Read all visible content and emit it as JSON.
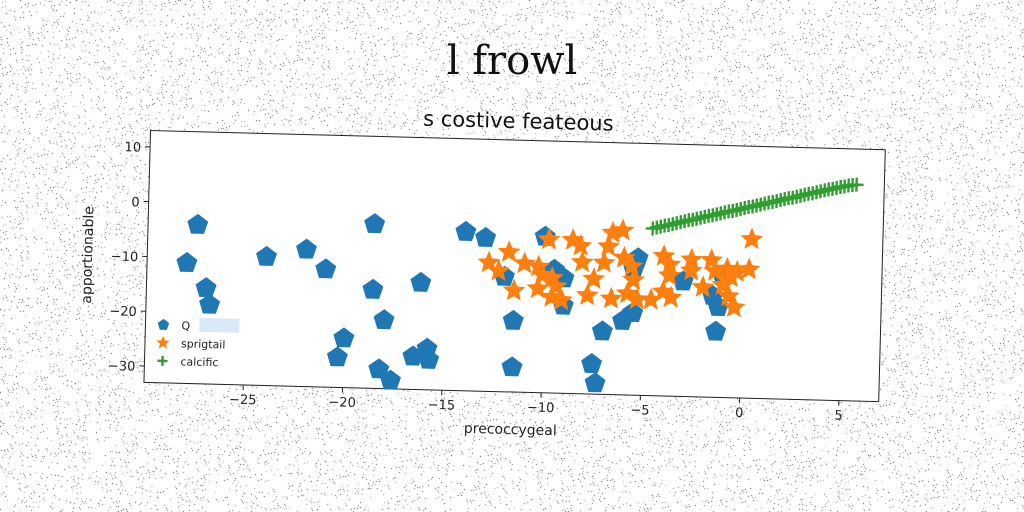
{
  "suptitle": "l frowl",
  "chart_data": {
    "type": "scatter",
    "title": "s costive feateous",
    "xlabel": "precoccygeal",
    "ylabel": "apportionable",
    "xlim": [
      -30,
      7
    ],
    "ylim": [
      -33,
      13
    ],
    "xticks": [
      -25,
      -20,
      -15,
      -10,
      -5,
      0,
      5
    ],
    "yticks": [
      10,
      0,
      -10,
      -20,
      -30
    ],
    "legend_position": "lower-left",
    "series": [
      {
        "name": "Q",
        "marker": "pentagon",
        "color": "#1f77b4",
        "points": [
          [
            -27.5,
            -4
          ],
          [
            -28,
            -11
          ],
          [
            -27,
            -15.5
          ],
          [
            -26.8,
            -18.5
          ],
          [
            -24,
            -9.5
          ],
          [
            -22,
            -8
          ],
          [
            -21,
            -11.5
          ],
          [
            -20,
            -24
          ],
          [
            -20.3,
            -27.5
          ],
          [
            -18.6,
            -3
          ],
          [
            -18.6,
            -15
          ],
          [
            -18,
            -20.5
          ],
          [
            -18.2,
            -29.5
          ],
          [
            -17.6,
            -31.5
          ],
          [
            -16.2,
            -13.5
          ],
          [
            -16.5,
            -27
          ],
          [
            -15.7,
            -27.5
          ],
          [
            -15.8,
            -25.5
          ],
          [
            -14,
            -4
          ],
          [
            -13,
            -5
          ],
          [
            -12,
            -12
          ],
          [
            -11.5,
            -20
          ],
          [
            -11.5,
            -28.5
          ],
          [
            -10,
            -4.5
          ],
          [
            -9.5,
            -10.5
          ],
          [
            -9,
            -12
          ],
          [
            -9,
            -17
          ],
          [
            -7.5,
            -27.5
          ],
          [
            -7.3,
            -31
          ],
          [
            -7,
            -21.5
          ],
          [
            -6,
            -19.5
          ],
          [
            -5.5,
            -18
          ],
          [
            -5.3,
            -8
          ],
          [
            -5.5,
            -10
          ],
          [
            -3,
            -12
          ],
          [
            -1.5,
            -14.5
          ],
          [
            -1.2,
            -16.5
          ],
          [
            -1,
            -11
          ],
          [
            -1.3,
            -21
          ]
        ]
      },
      {
        "name": "sprigtail",
        "marker": "star",
        "color": "#ff7f0e",
        "points": [
          [
            -12.8,
            -9.5
          ],
          [
            -12.3,
            -11
          ],
          [
            -11.8,
            -7.5
          ],
          [
            -11.5,
            -14.5
          ],
          [
            -11,
            -9.5
          ],
          [
            -10.3,
            -10
          ],
          [
            -10.1,
            -11.5
          ],
          [
            -10.3,
            -14
          ],
          [
            -9.8,
            -5
          ],
          [
            -9.6,
            -12
          ],
          [
            -9.4,
            -13.5
          ],
          [
            -9.6,
            -15.5
          ],
          [
            -9.1,
            -16
          ],
          [
            -8.6,
            -5
          ],
          [
            -8.2,
            -6
          ],
          [
            -8.1,
            -9
          ],
          [
            -7.8,
            -15
          ],
          [
            -7.5,
            -12
          ],
          [
            -7,
            -9
          ],
          [
            -6.8,
            -6
          ],
          [
            -6.6,
            -3.5
          ],
          [
            -6.6,
            -15.5
          ],
          [
            -6.1,
            -3
          ],
          [
            -6,
            -8
          ],
          [
            -5.6,
            -9.5
          ],
          [
            -5.5,
            -12
          ],
          [
            -5.8,
            -14.5
          ],
          [
            -5.3,
            -15.5
          ],
          [
            -4.6,
            -15.5
          ],
          [
            -4,
            -7.5
          ],
          [
            -3.7,
            -9
          ],
          [
            -3.7,
            -11
          ],
          [
            -4,
            -14
          ],
          [
            -3.6,
            -15
          ],
          [
            -2.6,
            -8
          ],
          [
            -2.6,
            -10
          ],
          [
            -2,
            -13
          ],
          [
            -1.6,
            -8
          ],
          [
            -1.4,
            -10
          ],
          [
            -1,
            -12.5
          ],
          [
            -0.8,
            -9.5
          ],
          [
            -0.7,
            -14.5
          ],
          [
            -0.4,
            -16.5
          ],
          [
            -0.6,
            -11
          ],
          [
            -0.3,
            -10
          ],
          [
            0.3,
            -9.5
          ],
          [
            0.4,
            -4
          ]
        ]
      },
      {
        "name": "calcific",
        "marker": "plus",
        "color": "#2ca02c",
        "points": [
          [
            -4.6,
            -2.5
          ],
          [
            -4.4,
            -2.3
          ],
          [
            -4.2,
            -2.1
          ],
          [
            -4,
            -1.9
          ],
          [
            -3.8,
            -1.8
          ],
          [
            -3.6,
            -1.6
          ],
          [
            -3.4,
            -1.4
          ],
          [
            -3.2,
            -1.2
          ],
          [
            -3,
            -1
          ],
          [
            -2.8,
            -0.8
          ],
          [
            -2.6,
            -0.7
          ],
          [
            -2.4,
            -0.5
          ],
          [
            -2.2,
            -0.3
          ],
          [
            -2,
            -0.1
          ],
          [
            -1.8,
            0.1
          ],
          [
            -1.6,
            0.2
          ],
          [
            -1.4,
            0.4
          ],
          [
            -1.2,
            0.6
          ],
          [
            -1,
            0.8
          ],
          [
            -0.8,
            1
          ],
          [
            -0.6,
            1.1
          ],
          [
            -0.4,
            1.3
          ],
          [
            -0.2,
            1.5
          ],
          [
            0,
            1.7
          ],
          [
            0.2,
            1.9
          ],
          [
            0.4,
            2
          ],
          [
            0.6,
            2.2
          ],
          [
            0.8,
            2.4
          ],
          [
            1,
            2.6
          ],
          [
            1.2,
            2.8
          ],
          [
            1.4,
            2.9
          ],
          [
            1.6,
            3.1
          ],
          [
            1.8,
            3.3
          ],
          [
            2,
            3.5
          ],
          [
            2.2,
            3.7
          ],
          [
            2.4,
            3.8
          ],
          [
            2.6,
            4
          ],
          [
            2.8,
            4.2
          ],
          [
            3,
            4.4
          ],
          [
            3.2,
            4.6
          ],
          [
            3.4,
            4.7
          ],
          [
            3.6,
            4.9
          ],
          [
            3.8,
            5.1
          ],
          [
            4,
            5.3
          ],
          [
            4.2,
            5.5
          ],
          [
            4.4,
            5.6
          ],
          [
            4.6,
            5.8
          ],
          [
            4.8,
            6
          ],
          [
            5,
            6.1
          ],
          [
            5.2,
            6.3
          ],
          [
            5.4,
            6.4
          ],
          [
            5.6,
            6.5
          ]
        ]
      }
    ]
  }
}
